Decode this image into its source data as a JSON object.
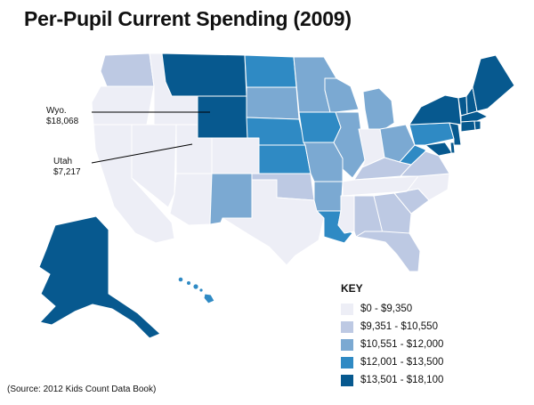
{
  "title": "Per-Pupil Current Spending (2009)",
  "source": "(Source: 2012 Kids Count Data Book)",
  "callouts": {
    "wyoming": {
      "name": "Wyo.",
      "value": "$18,068"
    },
    "utah": {
      "name": "Utah",
      "value": "$7,217"
    }
  },
  "key": {
    "title": "KEY",
    "items": [
      {
        "label": "$0 - $9,350",
        "color": "#edeef6"
      },
      {
        "label": "$9,351 - $10,550",
        "color": "#bdc9e3"
      },
      {
        "label": "$10,551 - $12,000",
        "color": "#7ba9d2"
      },
      {
        "label": "$12,001 - $13,500",
        "color": "#2f8ac4"
      },
      {
        "label": "$13,501 - $18,100",
        "color": "#07598f"
      }
    ]
  },
  "state_tiers": {
    "WA": 1,
    "OR": 0,
    "CA": 0,
    "NV": 0,
    "ID": 0,
    "MT": 4,
    "WY": 4,
    "UT": 0,
    "AZ": 0,
    "CO": 0,
    "NM": 2,
    "ND": 3,
    "SD": 2,
    "NE": 3,
    "KS": 3,
    "OK": 1,
    "TX": 0,
    "MN": 2,
    "IA": 3,
    "MO": 2,
    "AR": 2,
    "LA": 3,
    "WI": 2,
    "IL": 2,
    "MI": 2,
    "IN": 0,
    "OH": 2,
    "KY": 1,
    "TN": 0,
    "MS": 0,
    "AL": 1,
    "GA": 1,
    "FL": 1,
    "SC": 1,
    "NC": 0,
    "VA": 1,
    "WV": 3,
    "PA": 3,
    "NY": 4,
    "VT": 4,
    "NH": 4,
    "ME": 4,
    "MA": 4,
    "CT": 4,
    "RI": 4,
    "NJ": 4,
    "DE": 4,
    "MD": 4,
    "AK": 4,
    "HI": 3
  }
}
